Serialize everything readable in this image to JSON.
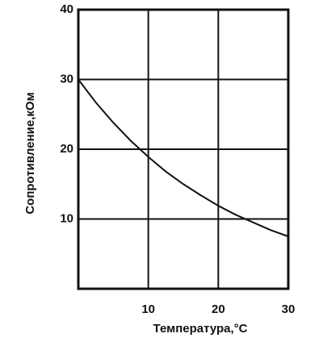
{
  "chart_data": {
    "type": "line",
    "x_label": "Температура,°C",
    "y_label": "Сопротивление,кОм",
    "x": [
      0,
      2.5,
      5,
      7.5,
      10,
      12.5,
      15,
      17.5,
      20,
      22.5,
      25,
      27.5,
      30
    ],
    "series": [
      {
        "color": "#111111",
        "values": [
          30,
          26.7,
          23.8,
          21.2,
          18.9,
          16.8,
          15.0,
          13.4,
          11.9,
          10.6,
          9.5,
          8.4,
          7.5
        ]
      }
    ],
    "xlim": [
      0,
      30
    ],
    "ylim": [
      0,
      40
    ],
    "xticks": [
      10,
      20,
      30
    ],
    "yticks": [
      10,
      20,
      30,
      40
    ],
    "grid": true
  }
}
